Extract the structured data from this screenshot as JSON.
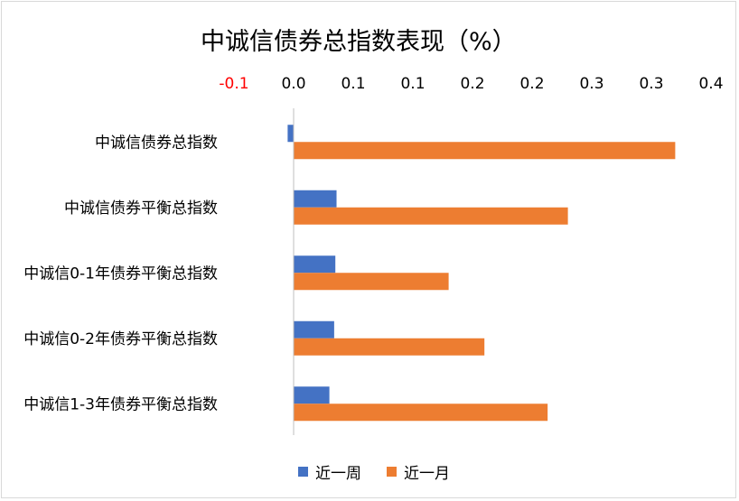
{
  "chart_data": {
    "type": "bar",
    "orientation": "horizontal",
    "title": "中诚信债券总指数表现（%）",
    "categories": [
      "中诚信债券总指数",
      "中诚信债券平衡总指数",
      "中诚信0-1年债券平衡总指数",
      "中诚信0-2年债券平衡总指数",
      "中诚信1-3年债券平衡总指数"
    ],
    "series": [
      {
        "name": "近一周",
        "color": "#4472c4",
        "values": [
          -0.005,
          0.036,
          0.035,
          0.034,
          0.03
        ]
      },
      {
        "name": "近一月",
        "color": "#ed7d31",
        "values": [
          0.32,
          0.23,
          0.13,
          0.16,
          0.213
        ]
      }
    ],
    "xlim": [
      -0.05,
      0.35
    ],
    "tick_values": [
      -0.05,
      0.0,
      0.05,
      0.1,
      0.15,
      0.2,
      0.25,
      0.3,
      0.35
    ],
    "tick_labels": [
      "-0.1",
      "0.0",
      "0.1",
      "0.1",
      "0.2",
      "0.2",
      "0.3",
      "0.3",
      "0.4"
    ],
    "negative_tick_color": "#ff0000",
    "axis_position": "top",
    "legend_position": "bottom",
    "grid": false
  }
}
